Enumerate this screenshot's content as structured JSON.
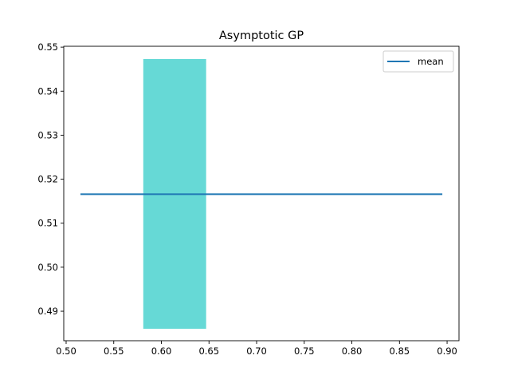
{
  "chart_data": {
    "type": "line",
    "title": "Asymptotic GP",
    "xlabel": "",
    "ylabel": "",
    "xlim": [
      0.4975,
      0.9125
    ],
    "ylim": [
      0.4833,
      0.5502
    ],
    "xticks": [
      0.5,
      0.55,
      0.6,
      0.65,
      0.7,
      0.75,
      0.8,
      0.85,
      0.9
    ],
    "xtick_labels": [
      "0.50",
      "0.55",
      "0.60",
      "0.65",
      "0.70",
      "0.75",
      "0.80",
      "0.85",
      "0.90"
    ],
    "yticks": [
      0.49,
      0.5,
      0.51,
      0.52,
      0.53,
      0.54,
      0.55
    ],
    "ytick_labels": [
      "0.49",
      "0.50",
      "0.51",
      "0.52",
      "0.53",
      "0.54",
      "0.55"
    ],
    "grid": false,
    "legend": {
      "location": "top-right",
      "entries": [
        "mean"
      ]
    },
    "series": [
      {
        "name": "mean",
        "color": "#1f77b4",
        "x": [
          0.515,
          0.895
        ],
        "y": [
          0.5166,
          0.5166
        ]
      }
    ],
    "band": {
      "color": "#66d9d6",
      "x": [
        0.581,
        0.647
      ],
      "y": [
        0.486,
        0.5473
      ]
    }
  }
}
